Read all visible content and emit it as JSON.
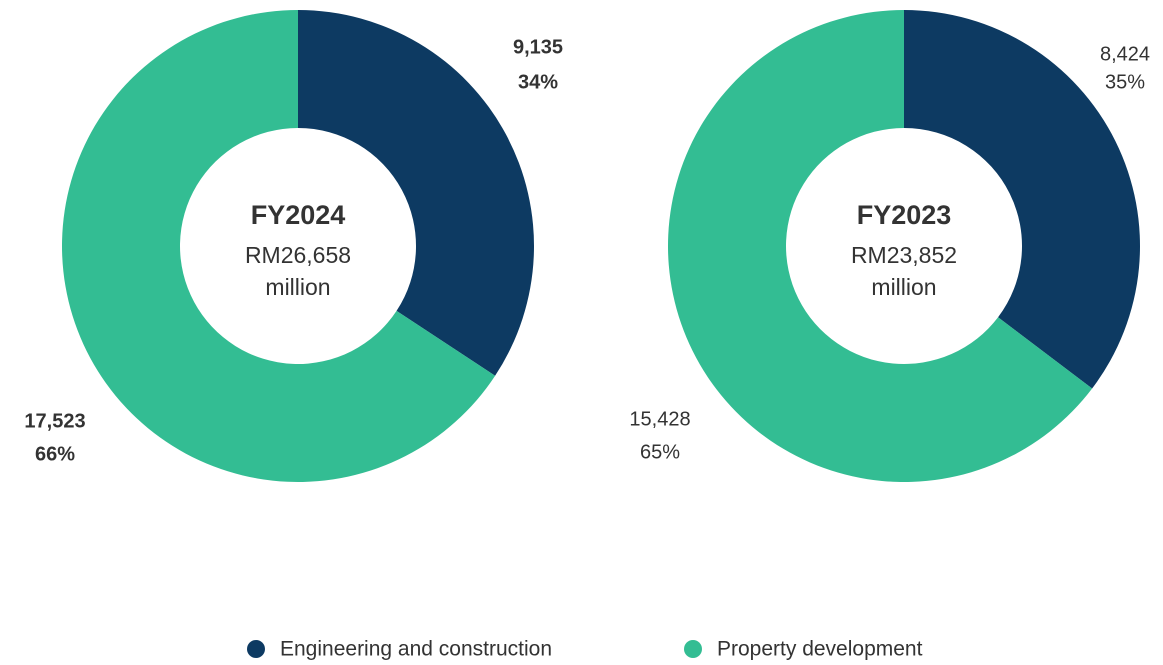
{
  "chart_data": [
    {
      "type": "pie",
      "title": "FY2024",
      "total_label": "RM26,658",
      "unit": "million",
      "values": [
        9135,
        17523
      ],
      "value_labels": [
        "9,135",
        "17,523"
      ],
      "percents": [
        34,
        66
      ],
      "percent_labels": [
        "34%",
        "66%"
      ],
      "colors": [
        "#0d3a62",
        "#33bd93"
      ],
      "label_bold": true,
      "donut": true
    },
    {
      "type": "pie",
      "title": "FY2023",
      "total_label": "RM23,852",
      "unit": "million",
      "values": [
        8424,
        15428
      ],
      "value_labels": [
        "8,424",
        "15,428"
      ],
      "percents": [
        35,
        65
      ],
      "percent_labels": [
        "35%",
        "65%"
      ],
      "colors": [
        "#0d3a62",
        "#33bd93"
      ],
      "label_bold": false,
      "donut": true
    }
  ],
  "legend": {
    "labels": [
      "Engineering and construction",
      "Property development"
    ],
    "colors": [
      "#0d3a62",
      "#33bd93"
    ]
  }
}
